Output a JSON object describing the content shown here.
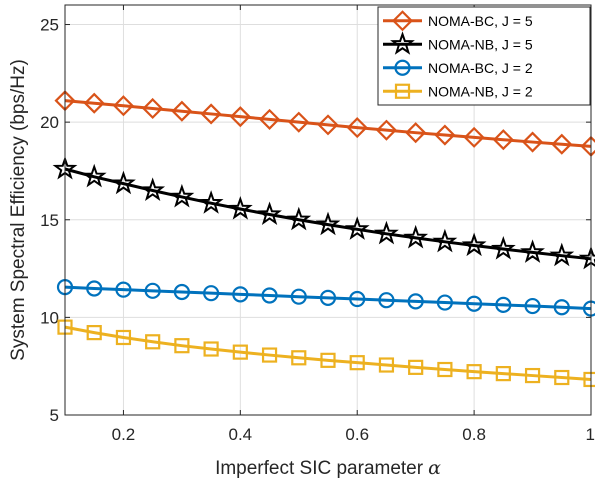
{
  "chart_data": {
    "type": "line",
    "title": "",
    "xlabel": "Imperfect SIC parameter",
    "xlabel_symbol": "α",
    "ylabel": "System Spectral Efficiency (bps/Hz)",
    "xlim": [
      0.1,
      1
    ],
    "ylim": [
      5,
      26
    ],
    "x_ticks": [
      0.2,
      0.4,
      0.6,
      0.8,
      1
    ],
    "x_tick_labels": [
      "0.2",
      "0.4",
      "0.6",
      "0.8",
      "1"
    ],
    "y_ticks": [
      5,
      10,
      15,
      20,
      25
    ],
    "y_tick_labels": [
      "5",
      "10",
      "15",
      "20",
      "25"
    ],
    "grid": true,
    "legend_position": "top-right",
    "x": [
      0.1,
      0.15,
      0.2,
      0.25,
      0.3,
      0.35,
      0.4,
      0.45,
      0.5,
      0.55,
      0.6,
      0.65,
      0.7,
      0.75,
      0.8,
      0.85,
      0.9,
      0.95,
      1.0
    ],
    "series": [
      {
        "name": "NOMA-BC, J = 5",
        "color": "#D95319",
        "marker": "diamond",
        "values": [
          21.1,
          20.97,
          20.84,
          20.7,
          20.56,
          20.42,
          20.28,
          20.14,
          20.0,
          19.86,
          19.72,
          19.59,
          19.46,
          19.34,
          19.22,
          19.1,
          18.98,
          18.87,
          18.76
        ]
      },
      {
        "name": "NOMA-NB, J = 5",
        "color": "#000000",
        "marker": "pentagram",
        "values": [
          17.6,
          17.2,
          16.85,
          16.5,
          16.17,
          15.85,
          15.55,
          15.27,
          15.0,
          14.75,
          14.51,
          14.28,
          14.07,
          13.87,
          13.68,
          13.5,
          13.33,
          13.16,
          13.0
        ]
      },
      {
        "name": "NOMA-BC, J = 2",
        "color": "#0072BD",
        "marker": "circle",
        "values": [
          11.55,
          11.48,
          11.42,
          11.36,
          11.3,
          11.24,
          11.18,
          11.12,
          11.06,
          11.0,
          10.94,
          10.88,
          10.82,
          10.76,
          10.7,
          10.64,
          10.58,
          10.52,
          10.45
        ]
      },
      {
        "name": "NOMA-NB, J = 2",
        "color": "#EDB120",
        "marker": "square",
        "values": [
          9.5,
          9.22,
          8.97,
          8.75,
          8.55,
          8.38,
          8.22,
          8.07,
          7.93,
          7.8,
          7.68,
          7.56,
          7.44,
          7.33,
          7.22,
          7.12,
          7.02,
          6.92,
          6.82
        ]
      }
    ]
  }
}
